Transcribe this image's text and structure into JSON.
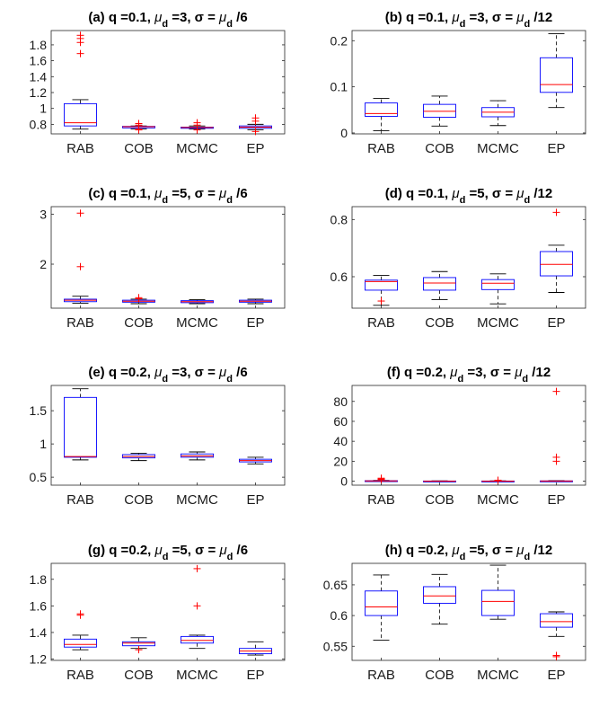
{
  "colors": {
    "box": "#0000ff",
    "median": "#ff0000",
    "outlier": "#ff0000",
    "whisker": "#000000",
    "axes": "#262626"
  },
  "chart_data": [
    {
      "id": "a",
      "type": "boxplot",
      "title": "(a) q =0.1, μd =3, σ = μd /6",
      "categories": [
        "RAB",
        "COB",
        "MCMC",
        "EP"
      ],
      "ylim": [
        0.68,
        1.98
      ],
      "yticks": [
        0.8,
        1,
        1.2,
        1.4,
        1.6,
        1.8
      ],
      "ytick_labels": [
        "0.8",
        "1",
        "1.2",
        "1.4",
        "1.6",
        "1.8"
      ],
      "boxes": [
        {
          "whislo": 0.74,
          "q1": 0.78,
          "med": 0.82,
          "q3": 1.06,
          "whishi": 1.11,
          "outliers": [
            1.69,
            1.83,
            1.88,
            1.92
          ]
        },
        {
          "whislo": 0.74,
          "q1": 0.755,
          "med": 0.77,
          "q3": 0.775,
          "whishi": 0.78,
          "outliers": [
            0.73,
            0.74,
            0.79,
            0.81
          ]
        },
        {
          "whislo": 0.74,
          "q1": 0.75,
          "med": 0.76,
          "q3": 0.765,
          "whishi": 0.78,
          "outliers": [
            0.73,
            0.79,
            0.82
          ]
        },
        {
          "whislo": 0.73,
          "q1": 0.75,
          "med": 0.765,
          "q3": 0.78,
          "whishi": 0.8,
          "outliers": [
            0.71,
            0.84,
            0.88
          ]
        }
      ]
    },
    {
      "id": "b",
      "type": "boxplot",
      "title": "(b) q =0.1, μd =3, σ = μd /12",
      "categories": [
        "RAB",
        "COB",
        "MCMC",
        "EP"
      ],
      "ylim": [
        -0.002,
        0.222
      ],
      "yticks": [
        0,
        0.1,
        0.2
      ],
      "ytick_labels": [
        "0",
        "0.1",
        "0.2"
      ],
      "boxes": [
        {
          "whislo": 0.005,
          "q1": 0.036,
          "med": 0.042,
          "q3": 0.065,
          "whishi": 0.075,
          "outliers": []
        },
        {
          "whislo": 0.015,
          "q1": 0.034,
          "med": 0.047,
          "q3": 0.062,
          "whishi": 0.08,
          "outliers": []
        },
        {
          "whislo": 0.016,
          "q1": 0.035,
          "med": 0.045,
          "q3": 0.055,
          "whishi": 0.07,
          "outliers": []
        },
        {
          "whislo": 0.055,
          "q1": 0.088,
          "med": 0.105,
          "q3": 0.163,
          "whishi": 0.215,
          "outliers": []
        }
      ]
    },
    {
      "id": "c",
      "type": "boxplot",
      "title": "(c) q =0.1, μd =5, σ = μd /6",
      "categories": [
        "RAB",
        "COB",
        "MCMC",
        "EP"
      ],
      "ylim": [
        1.12,
        3.15
      ],
      "yticks": [
        2,
        3
      ],
      "ytick_labels": [
        "2",
        "3"
      ],
      "boxes": [
        {
          "whislo": 1.22,
          "q1": 1.25,
          "med": 1.28,
          "q3": 1.3,
          "whishi": 1.36,
          "outliers": [
            1.95,
            3.02
          ]
        },
        {
          "whislo": 1.21,
          "q1": 1.24,
          "med": 1.26,
          "q3": 1.28,
          "whishi": 1.3,
          "outliers": [
            1.31,
            1.33
          ]
        },
        {
          "whislo": 1.21,
          "q1": 1.23,
          "med": 1.25,
          "q3": 1.27,
          "whishi": 1.29,
          "outliers": []
        },
        {
          "whislo": 1.21,
          "q1": 1.24,
          "med": 1.26,
          "q3": 1.28,
          "whishi": 1.3,
          "outliers": []
        }
      ]
    },
    {
      "id": "d",
      "type": "boxplot",
      "title": "(d) q =0.1, μd =5, σ = μd /12",
      "categories": [
        "RAB",
        "COB",
        "MCMC",
        "EP"
      ],
      "ylim": [
        0.49,
        0.845
      ],
      "yticks": [
        0.6,
        0.8
      ],
      "ytick_labels": [
        "0.6",
        "0.8"
      ],
      "boxes": [
        {
          "whislo": 0.5,
          "q1": 0.553,
          "med": 0.583,
          "q3": 0.588,
          "whishi": 0.605,
          "outliers": [
            0.515
          ]
        },
        {
          "whislo": 0.52,
          "q1": 0.553,
          "med": 0.578,
          "q3": 0.597,
          "whishi": 0.618,
          "outliers": []
        },
        {
          "whislo": 0.505,
          "q1": 0.555,
          "med": 0.577,
          "q3": 0.59,
          "whishi": 0.61,
          "outliers": []
        },
        {
          "whislo": 0.545,
          "q1": 0.603,
          "med": 0.643,
          "q3": 0.688,
          "whishi": 0.71,
          "outliers": [
            0.825
          ]
        }
      ]
    },
    {
      "id": "e",
      "type": "boxplot",
      "title": "(e) q =0.2, μd =3, σ = μd /6",
      "categories": [
        "RAB",
        "COB",
        "MCMC",
        "EP"
      ],
      "ylim": [
        0.38,
        1.88
      ],
      "yticks": [
        0.5,
        1,
        1.5
      ],
      "ytick_labels": [
        "0.5",
        "1",
        "1.5"
      ],
      "boxes": [
        {
          "whislo": 0.76,
          "q1": 0.8,
          "med": 0.81,
          "q3": 1.7,
          "whishi": 1.83,
          "outliers": []
        },
        {
          "whislo": 0.75,
          "q1": 0.79,
          "med": 0.81,
          "q3": 0.84,
          "whishi": 0.86,
          "outliers": []
        },
        {
          "whislo": 0.76,
          "q1": 0.8,
          "med": 0.82,
          "q3": 0.85,
          "whishi": 0.88,
          "outliers": []
        },
        {
          "whislo": 0.7,
          "q1": 0.73,
          "med": 0.75,
          "q3": 0.77,
          "whishi": 0.8,
          "outliers": []
        }
      ]
    },
    {
      "id": "f",
      "type": "boxplot",
      "title": "(f) q =0.2, μd =3, σ = μd /12",
      "categories": [
        "RAB",
        "COB",
        "MCMC",
        "EP"
      ],
      "ylim": [
        -4,
        96
      ],
      "yticks": [
        0,
        20,
        40,
        60,
        80
      ],
      "ytick_labels": [
        "0",
        "20",
        "40",
        "60",
        "80"
      ],
      "boxes": [
        {
          "whislo": 0,
          "q1": 0,
          "med": 0.3,
          "q3": 0.5,
          "whishi": 0.8,
          "outliers": [
            1.5,
            2.2,
            3.0
          ]
        },
        {
          "whislo": 0,
          "q1": 0,
          "med": 0.1,
          "q3": 0.2,
          "whishi": 0.3,
          "outliers": []
        },
        {
          "whislo": 0,
          "q1": 0,
          "med": 0.1,
          "q3": 0.2,
          "whishi": 0.3,
          "outliers": [
            1.0
          ]
        },
        {
          "whislo": 0,
          "q1": 0,
          "med": 0.2,
          "q3": 0.3,
          "whishi": 0.5,
          "outliers": [
            20,
            24,
            90
          ]
        }
      ]
    },
    {
      "id": "g",
      "type": "boxplot",
      "title": "(g) q =0.2, μd =5, σ = μd /6",
      "categories": [
        "RAB",
        "COB",
        "MCMC",
        "EP"
      ],
      "ylim": [
        1.19,
        1.92
      ],
      "yticks": [
        1.2,
        1.4,
        1.6,
        1.8
      ],
      "ytick_labels": [
        "1.2",
        "1.4",
        "1.6",
        "1.8"
      ],
      "boxes": [
        {
          "whislo": 1.27,
          "q1": 1.29,
          "med": 1.31,
          "q3": 1.35,
          "whishi": 1.38,
          "outliers": [
            1.53,
            1.54
          ]
        },
        {
          "whislo": 1.28,
          "q1": 1.3,
          "med": 1.32,
          "q3": 1.33,
          "whishi": 1.36,
          "outliers": [
            1.27
          ]
        },
        {
          "whislo": 1.28,
          "q1": 1.32,
          "med": 1.34,
          "q3": 1.37,
          "whishi": 1.38,
          "outliers": [
            1.6,
            1.88
          ]
        },
        {
          "whislo": 1.23,
          "q1": 1.24,
          "med": 1.26,
          "q3": 1.28,
          "whishi": 1.33,
          "outliers": []
        }
      ]
    },
    {
      "id": "h",
      "type": "boxplot",
      "title": "(h) q =0.2, μd =5, σ = μd /12",
      "categories": [
        "RAB",
        "COB",
        "MCMC",
        "EP"
      ],
      "ylim": [
        0.527,
        0.685
      ],
      "yticks": [
        0.55,
        0.6,
        0.65
      ],
      "ytick_labels": [
        "0.55",
        "0.6",
        "0.65"
      ],
      "boxes": [
        {
          "whislo": 0.56,
          "q1": 0.6,
          "med": 0.614,
          "q3": 0.64,
          "whishi": 0.666,
          "outliers": []
        },
        {
          "whislo": 0.586,
          "q1": 0.62,
          "med": 0.632,
          "q3": 0.647,
          "whishi": 0.667,
          "outliers": []
        },
        {
          "whislo": 0.594,
          "q1": 0.6,
          "med": 0.623,
          "q3": 0.641,
          "whishi": 0.682,
          "outliers": []
        },
        {
          "whislo": 0.566,
          "q1": 0.581,
          "med": 0.59,
          "q3": 0.603,
          "whishi": 0.606,
          "outliers": [
            0.533,
            0.535
          ]
        }
      ]
    }
  ]
}
